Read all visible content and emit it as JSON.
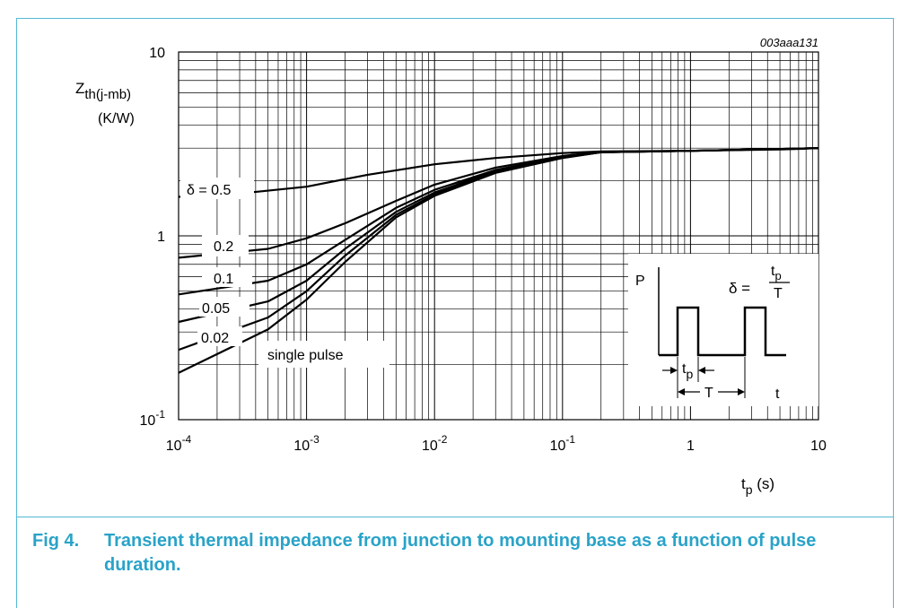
{
  "figure": {
    "code": "003aaa131",
    "caption_num": "Fig 4.",
    "caption_text": "Transient thermal impedance from junction to mounting base as a function of pulse duration."
  },
  "colors": {
    "frame": "#54b8d6",
    "caption": "#2aa3c8",
    "ink": "#000000"
  },
  "chart_data": {
    "type": "line",
    "x_scale": "log",
    "y_scale": "log",
    "xlim": [
      0.0001,
      10
    ],
    "ylim": [
      0.1,
      10
    ],
    "grid": true,
    "ylabel_main": "Z",
    "ylabel_sub": "th(j-mb)",
    "yunit": "(K/W)",
    "xlabel_main": "t",
    "xlabel_sub": "p",
    "xunit": " (s)",
    "x_ticks": [
      {
        "value": 0.0001,
        "base": "10",
        "exp": "-4"
      },
      {
        "value": 0.001,
        "base": "10",
        "exp": "-3"
      },
      {
        "value": 0.01,
        "base": "10",
        "exp": "-2"
      },
      {
        "value": 0.1,
        "base": "10",
        "exp": "-1"
      },
      {
        "value": 1,
        "base": "1",
        "exp": ""
      },
      {
        "value": 10,
        "base": "10",
        "exp": ""
      }
    ],
    "y_ticks": [
      {
        "value": 10,
        "base": "10",
        "exp": ""
      },
      {
        "value": 1,
        "base": "1",
        "exp": ""
      },
      {
        "value": 0.1,
        "base": "10",
        "exp": "-1"
      }
    ],
    "series": [
      {
        "name": "δ = 0.5",
        "points": [
          [
            0.0001,
            1.63
          ],
          [
            0.0003,
            1.7
          ],
          [
            0.001,
            1.85
          ],
          [
            0.003,
            2.15
          ],
          [
            0.01,
            2.45
          ],
          [
            0.03,
            2.65
          ],
          [
            0.1,
            2.82
          ],
          [
            0.2,
            2.88
          ],
          [
            1,
            2.9
          ],
          [
            5,
            2.95
          ],
          [
            10,
            3.0
          ]
        ]
      },
      {
        "name": "0.2",
        "points": [
          [
            0.0001,
            0.76
          ],
          [
            0.0005,
            0.85
          ],
          [
            0.001,
            0.97
          ],
          [
            0.002,
            1.17
          ],
          [
            0.005,
            1.55
          ],
          [
            0.01,
            1.9
          ],
          [
            0.03,
            2.35
          ],
          [
            0.1,
            2.72
          ],
          [
            0.2,
            2.86
          ],
          [
            1,
            2.9
          ],
          [
            10,
            3.0
          ]
        ]
      },
      {
        "name": "0.1",
        "points": [
          [
            0.0001,
            0.48
          ],
          [
            0.0005,
            0.57
          ],
          [
            0.001,
            0.7
          ],
          [
            0.002,
            0.95
          ],
          [
            0.005,
            1.42
          ],
          [
            0.01,
            1.78
          ],
          [
            0.03,
            2.28
          ],
          [
            0.1,
            2.7
          ],
          [
            0.2,
            2.85
          ],
          [
            1,
            2.9
          ],
          [
            10,
            3.0
          ]
        ]
      },
      {
        "name": "0.05",
        "points": [
          [
            0.0001,
            0.34
          ],
          [
            0.0005,
            0.44
          ],
          [
            0.001,
            0.57
          ],
          [
            0.002,
            0.85
          ],
          [
            0.005,
            1.35
          ],
          [
            0.01,
            1.72
          ],
          [
            0.03,
            2.25
          ],
          [
            0.1,
            2.68
          ],
          [
            0.2,
            2.85
          ],
          [
            1,
            2.9
          ],
          [
            10,
            3.0
          ]
        ]
      },
      {
        "name": "0.02",
        "points": [
          [
            0.0001,
            0.24
          ],
          [
            0.0005,
            0.36
          ],
          [
            0.001,
            0.5
          ],
          [
            0.002,
            0.78
          ],
          [
            0.005,
            1.3
          ],
          [
            0.01,
            1.68
          ],
          [
            0.03,
            2.22
          ],
          [
            0.1,
            2.66
          ],
          [
            0.2,
            2.85
          ],
          [
            1,
            2.9
          ],
          [
            10,
            3.0
          ]
        ]
      },
      {
        "name": "single pulse",
        "points": [
          [
            0.0001,
            0.18
          ],
          [
            0.0005,
            0.31
          ],
          [
            0.001,
            0.45
          ],
          [
            0.002,
            0.72
          ],
          [
            0.005,
            1.26
          ],
          [
            0.01,
            1.65
          ],
          [
            0.03,
            2.2
          ],
          [
            0.1,
            2.65
          ],
          [
            0.2,
            2.85
          ],
          [
            1,
            2.9
          ],
          [
            10,
            3.0
          ]
        ]
      }
    ],
    "inset": {
      "p_label": "P",
      "t_label": "t",
      "tp_main": "t",
      "tp_sub": "p",
      "T_label": "T",
      "delta": "δ =",
      "frac_num_main": "t",
      "frac_num_sub": "p",
      "frac_den": "T"
    }
  }
}
